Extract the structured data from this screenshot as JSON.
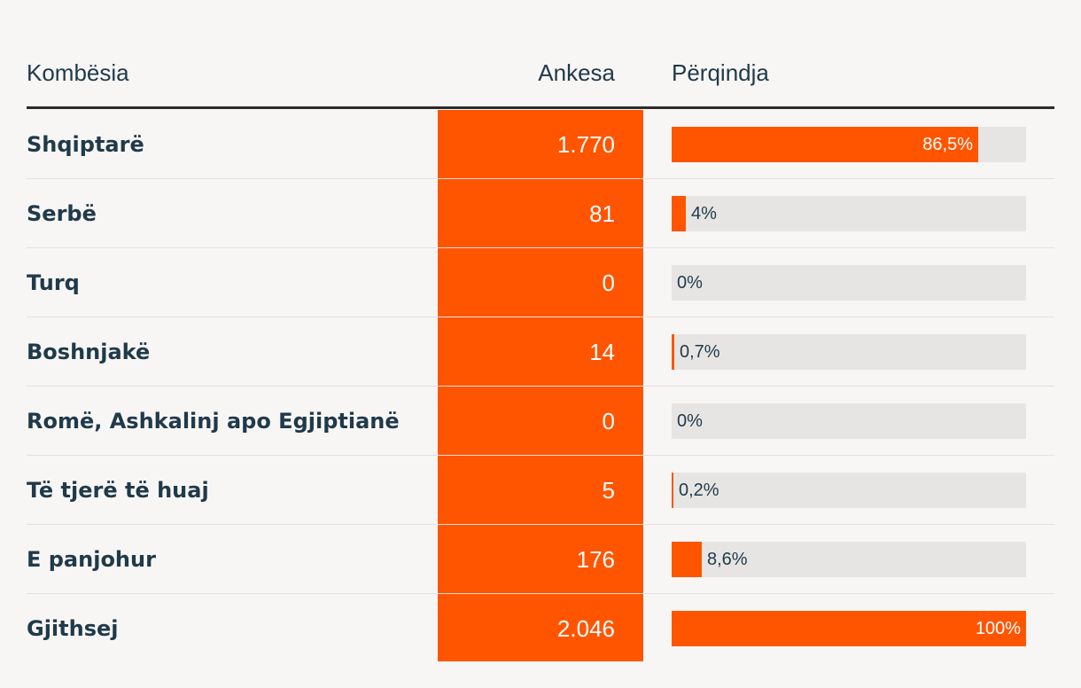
{
  "chart_data": {
    "type": "table",
    "columns": [
      "Kombësia",
      "Ankesa",
      "Përqindja"
    ],
    "rows": [
      {
        "name": "Shqiptarë",
        "value": "1.770",
        "percent": 86.5,
        "percent_label": "86,5%"
      },
      {
        "name": "Serbë",
        "value": "81",
        "percent": 4,
        "percent_label": "4%"
      },
      {
        "name": "Turq",
        "value": "0",
        "percent": 0,
        "percent_label": "0%"
      },
      {
        "name": "Boshnjakë",
        "value": "14",
        "percent": 0.7,
        "percent_label": "0,7%"
      },
      {
        "name": "Romë, Ashkalinj apo Egjiptianë",
        "value": "0",
        "percent": 0,
        "percent_label": "0%"
      },
      {
        "name": "Të tjerë të huaj",
        "value": "5",
        "percent": 0.2,
        "percent_label": "0,2%"
      },
      {
        "name": "E panjohur",
        "value": "176",
        "percent": 8.6,
        "percent_label": "8,6%"
      },
      {
        "name": "Gjithsej",
        "value": "2.046",
        "percent": 100,
        "percent_label": "100%"
      }
    ],
    "colors": {
      "accent": "#ff5500",
      "track": "#e7e5e3",
      "text": "#1f3a4a"
    }
  }
}
